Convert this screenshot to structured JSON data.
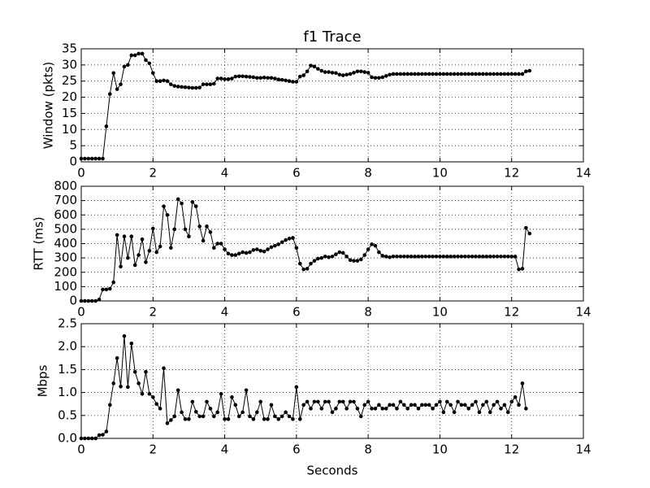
{
  "chart_data": [
    {
      "type": "line",
      "title": "f1 Trace",
      "y_label": "Window (pkts)",
      "x": [
        0,
        0.1,
        0.2,
        0.3,
        0.4,
        0.5,
        0.6,
        0.7,
        0.8,
        0.9,
        1,
        1.1,
        1.2,
        1.3,
        1.4,
        1.5,
        1.6,
        1.7,
        1.8,
        1.9,
        2,
        2.1,
        2.2,
        2.3,
        2.4,
        2.5,
        2.6,
        2.7,
        2.8,
        2.9,
        3,
        3.1,
        3.2,
        3.3,
        3.4,
        3.5,
        3.6,
        3.7,
        3.8,
        3.9,
        4,
        4.1,
        4.2,
        4.3,
        4.4,
        4.5,
        4.6,
        4.7,
        4.8,
        4.9,
        5,
        5.1,
        5.2,
        5.3,
        5.4,
        5.5,
        5.6,
        5.7,
        5.8,
        5.9,
        6,
        6.1,
        6.2,
        6.3,
        6.4,
        6.5,
        6.6,
        6.7,
        6.8,
        6.9,
        7,
        7.1,
        7.2,
        7.3,
        7.4,
        7.5,
        7.6,
        7.7,
        7.8,
        7.9,
        8,
        8.1,
        8.2,
        8.3,
        8.4,
        8.5,
        8.6,
        8.7,
        8.8,
        8.9,
        9,
        9.1,
        9.2,
        9.3,
        9.4,
        9.5,
        9.6,
        9.7,
        9.8,
        9.9,
        10,
        10.1,
        10.2,
        10.3,
        10.4,
        10.5,
        10.6,
        10.7,
        10.8,
        10.9,
        11,
        11.1,
        11.2,
        11.3,
        11.4,
        11.5,
        11.6,
        11.7,
        11.8,
        11.9,
        12,
        12.1,
        12.2,
        12.3,
        12.4,
        12.5
      ],
      "series": [
        {
          "color": "#000000",
          "values": [
            1,
            1,
            1,
            1,
            1,
            1,
            1,
            11,
            21,
            27.5,
            22.5,
            24,
            29.5,
            30,
            33,
            33,
            33.5,
            33.5,
            31.5,
            30.5,
            27.5,
            25,
            25,
            25.2,
            25,
            24,
            23.5,
            23.3,
            23.2,
            23.1,
            23,
            22.9,
            22.9,
            23,
            24,
            24,
            24,
            24.2,
            25.8,
            25.8,
            25.6,
            25.6,
            25.8,
            26.4,
            26.5,
            26.5,
            26.4,
            26.3,
            26.2,
            26,
            26,
            26.1,
            26,
            26,
            25.8,
            25.5,
            25.4,
            25.2,
            25,
            24.8,
            24.8,
            26.4,
            26.8,
            28,
            29.8,
            29.5,
            28.8,
            28.2,
            27.8,
            27.8,
            27.6,
            27.5,
            27,
            26.8,
            27,
            27.2,
            27.6,
            28,
            28,
            27.8,
            27.6,
            26.2,
            26,
            26,
            26.2,
            26.6,
            27,
            27.2,
            27.2,
            27.2,
            27.2,
            27.2,
            27.2,
            27.2,
            27.2,
            27.2,
            27.2,
            27.2,
            27.2,
            27.2,
            27.2,
            27.2,
            27.2,
            27.2,
            27.2,
            27.2,
            27.2,
            27.2,
            27.2,
            27.2,
            27.2,
            27.2,
            27.2,
            27.2,
            27.2,
            27.2,
            27.2,
            27.2,
            27.2,
            27.2,
            27.2,
            27.2,
            27.2,
            27.2,
            28,
            28.2
          ]
        }
      ],
      "xlim": [
        0,
        14
      ],
      "xticks": [
        0,
        2,
        4,
        6,
        8,
        10,
        12,
        14
      ],
      "ylim": [
        0,
        35
      ],
      "yticks": [
        0,
        5,
        10,
        15,
        20,
        25,
        30,
        35
      ],
      "grid": true
    },
    {
      "type": "line",
      "y_label": "RTT (ms)",
      "x": [
        0,
        0.1,
        0.2,
        0.3,
        0.4,
        0.5,
        0.6,
        0.7,
        0.8,
        0.9,
        1,
        1.1,
        1.2,
        1.3,
        1.4,
        1.5,
        1.6,
        1.7,
        1.8,
        1.9,
        2,
        2.1,
        2.2,
        2.3,
        2.4,
        2.5,
        2.6,
        2.7,
        2.8,
        2.9,
        3,
        3.1,
        3.2,
        3.3,
        3.4,
        3.5,
        3.6,
        3.7,
        3.8,
        3.9,
        4,
        4.1,
        4.2,
        4.3,
        4.4,
        4.5,
        4.6,
        4.7,
        4.8,
        4.9,
        5,
        5.1,
        5.2,
        5.3,
        5.4,
        5.5,
        5.6,
        5.7,
        5.8,
        5.9,
        6,
        6.1,
        6.2,
        6.3,
        6.4,
        6.5,
        6.6,
        6.7,
        6.8,
        6.9,
        7,
        7.1,
        7.2,
        7.3,
        7.4,
        7.5,
        7.6,
        7.7,
        7.8,
        7.9,
        8,
        8.1,
        8.2,
        8.3,
        8.4,
        8.5,
        8.6,
        8.7,
        8.8,
        8.9,
        9,
        9.1,
        9.2,
        9.3,
        9.4,
        9.5,
        9.6,
        9.7,
        9.8,
        9.9,
        10,
        10.1,
        10.2,
        10.3,
        10.4,
        10.5,
        10.6,
        10.7,
        10.8,
        10.9,
        11,
        11.1,
        11.2,
        11.3,
        11.4,
        11.5,
        11.6,
        11.7,
        11.8,
        11.9,
        12,
        12.1,
        12.2,
        12.3,
        12.4,
        12.5
      ],
      "series": [
        {
          "color": "#000000",
          "values": [
            0,
            0,
            0,
            0,
            0,
            10,
            80,
            80,
            85,
            130,
            460,
            240,
            450,
            300,
            450,
            250,
            320,
            430,
            270,
            350,
            505,
            340,
            380,
            660,
            600,
            370,
            500,
            710,
            680,
            500,
            450,
            690,
            660,
            520,
            420,
            520,
            480,
            370,
            400,
            400,
            360,
            330,
            320,
            320,
            330,
            340,
            335,
            340,
            355,
            360,
            350,
            345,
            360,
            375,
            385,
            395,
            410,
            425,
            435,
            440,
            370,
            260,
            220,
            225,
            260,
            280,
            295,
            300,
            310,
            305,
            310,
            325,
            340,
            335,
            310,
            285,
            280,
            280,
            290,
            320,
            360,
            395,
            385,
            340,
            315,
            310,
            305,
            310,
            310,
            310,
            310,
            310,
            310,
            310,
            310,
            310,
            310,
            310,
            310,
            310,
            310,
            310,
            310,
            310,
            310,
            310,
            310,
            310,
            310,
            310,
            310,
            310,
            310,
            310,
            310,
            310,
            310,
            310,
            310,
            310,
            310,
            310,
            220,
            225,
            510,
            470
          ]
        }
      ],
      "xlim": [
        0,
        14
      ],
      "xticks": [
        0,
        2,
        4,
        6,
        8,
        10,
        12,
        14
      ],
      "ylim": [
        0,
        800
      ],
      "yticks": [
        0,
        100,
        200,
        300,
        400,
        500,
        600,
        700,
        800
      ],
      "grid": true
    },
    {
      "type": "line",
      "y_label": "Mbps",
      "x_label": "Seconds",
      "x": [
        0,
        0.1,
        0.2,
        0.3,
        0.4,
        0.5,
        0.6,
        0.7,
        0.8,
        0.9,
        1,
        1.1,
        1.2,
        1.3,
        1.4,
        1.5,
        1.6,
        1.7,
        1.8,
        1.9,
        2,
        2.1,
        2.2,
        2.3,
        2.4,
        2.5,
        2.6,
        2.7,
        2.8,
        2.9,
        3,
        3.1,
        3.2,
        3.3,
        3.4,
        3.5,
        3.6,
        3.7,
        3.8,
        3.9,
        4,
        4.1,
        4.2,
        4.3,
        4.4,
        4.5,
        4.6,
        4.7,
        4.8,
        4.9,
        5,
        5.1,
        5.2,
        5.3,
        5.4,
        5.5,
        5.6,
        5.7,
        5.8,
        5.9,
        6,
        6.1,
        6.2,
        6.3,
        6.4,
        6.5,
        6.6,
        6.7,
        6.8,
        6.9,
        7,
        7.1,
        7.2,
        7.3,
        7.4,
        7.5,
        7.6,
        7.7,
        7.8,
        7.9,
        8,
        8.1,
        8.2,
        8.3,
        8.4,
        8.5,
        8.6,
        8.7,
        8.8,
        8.9,
        9,
        9.1,
        9.2,
        9.3,
        9.4,
        9.5,
        9.6,
        9.7,
        9.8,
        9.9,
        10,
        10.1,
        10.2,
        10.3,
        10.4,
        10.5,
        10.6,
        10.7,
        10.8,
        10.9,
        11,
        11.1,
        11.2,
        11.3,
        11.4,
        11.5,
        11.6,
        11.7,
        11.8,
        11.9,
        12,
        12.1,
        12.2,
        12.3,
        12.4
      ],
      "series": [
        {
          "color": "#000000",
          "values": [
            0,
            0,
            0,
            0,
            0,
            0.07,
            0.08,
            0.15,
            0.73,
            1.2,
            1.75,
            1.13,
            2.23,
            1.12,
            2.07,
            1.45,
            1.2,
            0.97,
            1.45,
            0.97,
            0.9,
            0.75,
            0.65,
            1.53,
            0.33,
            0.4,
            0.48,
            1.05,
            0.57,
            0.42,
            0.42,
            0.8,
            0.58,
            0.48,
            0.48,
            0.8,
            0.65,
            0.48,
            0.57,
            0.97,
            0.42,
            0.42,
            0.9,
            0.73,
            0.48,
            0.57,
            1.05,
            0.48,
            0.42,
            0.57,
            0.8,
            0.42,
            0.42,
            0.73,
            0.48,
            0.42,
            0.48,
            0.57,
            0.48,
            0.42,
            1.12,
            0.42,
            0.73,
            0.8,
            0.65,
            0.8,
            0.8,
            0.65,
            0.8,
            0.8,
            0.57,
            0.65,
            0.8,
            0.8,
            0.65,
            0.8,
            0.8,
            0.65,
            0.48,
            0.73,
            0.8,
            0.65,
            0.65,
            0.73,
            0.65,
            0.65,
            0.73,
            0.73,
            0.65,
            0.8,
            0.73,
            0.65,
            0.73,
            0.73,
            0.65,
            0.73,
            0.73,
            0.73,
            0.65,
            0.73,
            0.8,
            0.57,
            0.8,
            0.73,
            0.57,
            0.8,
            0.73,
            0.73,
            0.65,
            0.73,
            0.8,
            0.57,
            0.73,
            0.8,
            0.57,
            0.73,
            0.8,
            0.65,
            0.73,
            0.57,
            0.8,
            0.9,
            0.73,
            1.2,
            0.65
          ]
        }
      ],
      "xlim": [
        0,
        14
      ],
      "xticks": [
        0,
        2,
        4,
        6,
        8,
        10,
        12,
        14
      ],
      "ylim": [
        0,
        2.5
      ],
      "yticks": [
        {
          "value": 0,
          "label": "0.0"
        },
        0.5,
        {
          "value": 1,
          "label": "1.0"
        },
        1.5,
        {
          "value": 2,
          "label": "2.0"
        },
        2.5
      ],
      "grid": true
    }
  ]
}
